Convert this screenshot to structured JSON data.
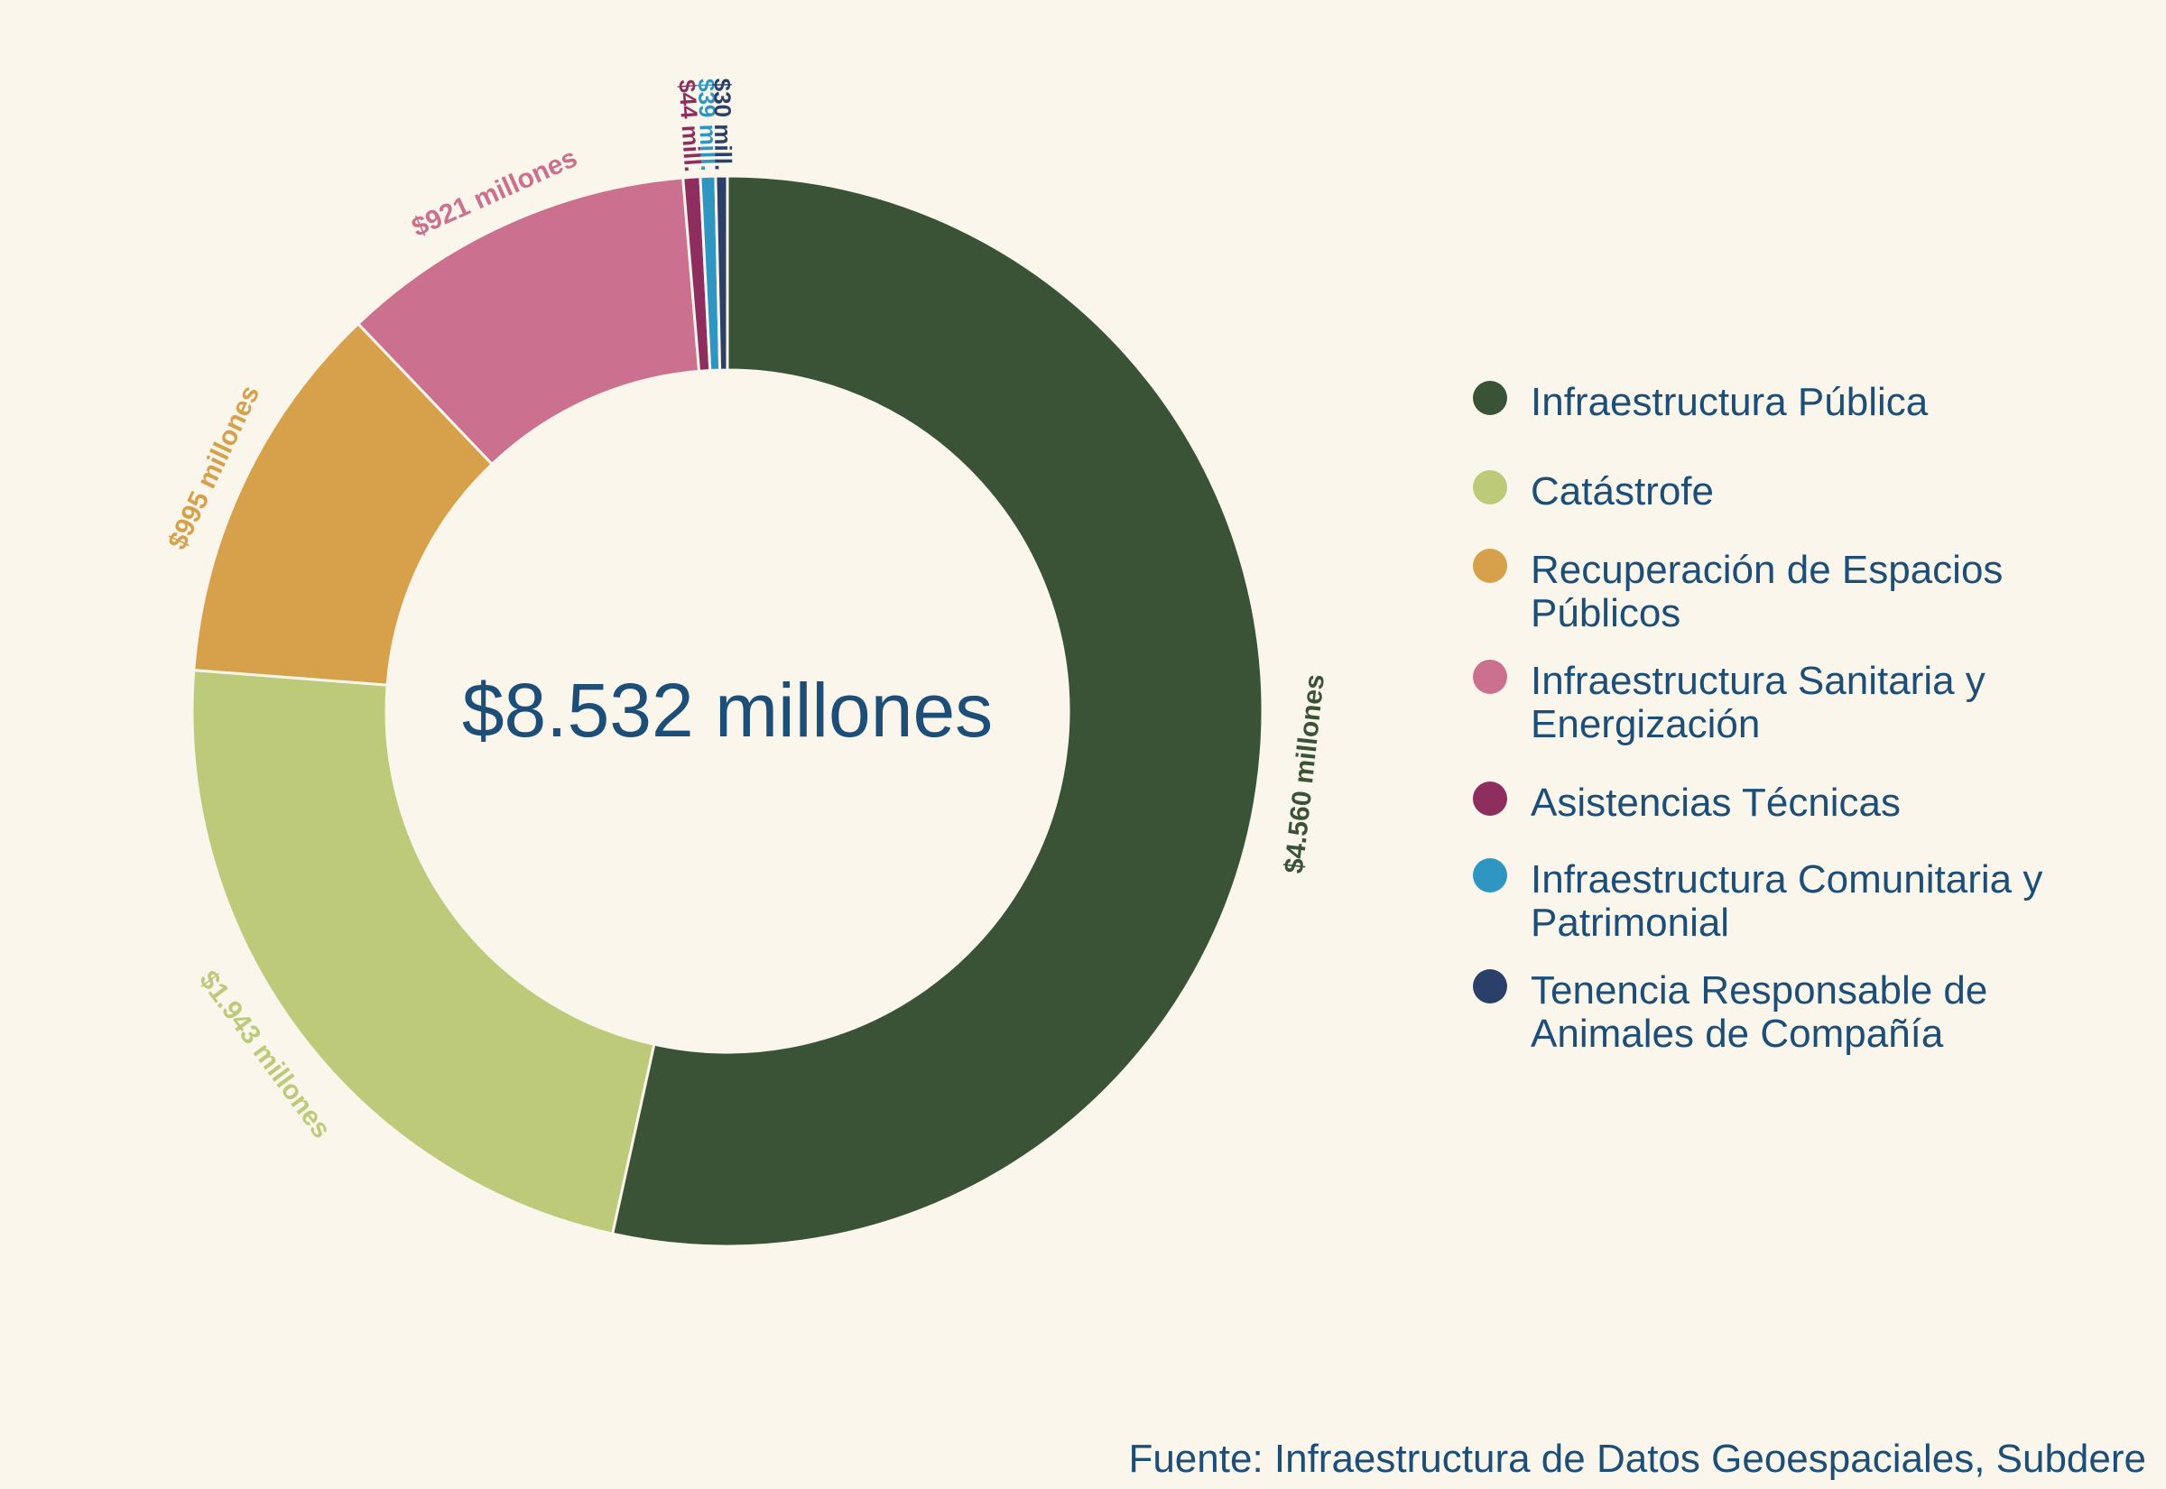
{
  "chart_data": {
    "type": "pie",
    "center_label": "$8.532 millones",
    "categories": [
      "Infraestructura Pública",
      "Catástrofe",
      "Recuperación de Espacios Públicos",
      "Infraestructura Sanitaria y Energización",
      "Asistencias Técnicas",
      "Infraestructura Comunitaria y Patrimonial",
      "Tenencia Responsable de Animales de Compañía"
    ],
    "values": [
      4560,
      1943,
      995,
      921,
      44,
      39,
      30
    ],
    "data_labels": [
      "$4.560 millones",
      "$1.943 millones",
      "$995 millones",
      "$921 millones",
      "$44 mill.",
      "$39 mill.",
      "$30 mill."
    ],
    "colors": [
      "#3a5336",
      "#bcca79",
      "#d7a04a",
      "#cb708e",
      "#8e2e5e",
      "#2f95c1",
      "#2b4068"
    ],
    "legend": {
      "position": "right",
      "items": [
        "Infraestructura Pública",
        "Catástrofe",
        "Recuperación de Espacios Públicos",
        "Infraestructura Sanitaria y Energización",
        "Asistencias Técnicas",
        "Infraestructura Comunitaria y Patrimonial",
        "Tenencia Responsable de Animales de Compañía"
      ]
    }
  },
  "source": "Fuente: Infraestructura de Datos Geoespaciales, Subdere"
}
